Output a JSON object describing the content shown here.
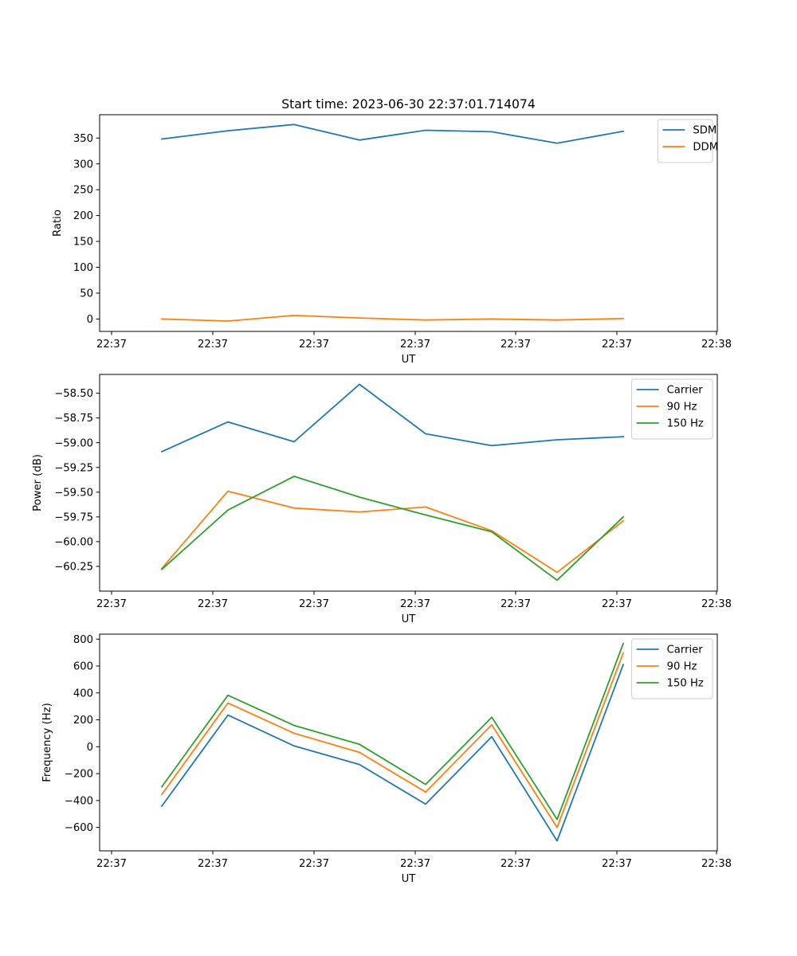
{
  "chart_data": [
    {
      "type": "line",
      "title": "Start time: 2023-06-30 22:37:01.714074",
      "xlabel": "UT",
      "ylabel": "Ratio",
      "x_tick_labels": [
        "22:37",
        "22:37",
        "22:37",
        "22:37",
        "22:37",
        "22:37",
        "22:38"
      ],
      "y_ticks": [
        0,
        50,
        100,
        150,
        200,
        250,
        300,
        350
      ],
      "y_tick_labels": [
        "0",
        "50",
        "100",
        "150",
        "200",
        "250",
        "300",
        "350"
      ],
      "ylim": [
        -24,
        395
      ],
      "legend": "upper right",
      "grid": false,
      "series": [
        {
          "name": "SDM",
          "color": "#1f77b4",
          "values": [
            348,
            364,
            376,
            346,
            365,
            362,
            340,
            363
          ]
        },
        {
          "name": "DDM",
          "color": "#ff7f0e",
          "values": [
            0,
            -4,
            7,
            2,
            -2,
            0,
            -2,
            1
          ]
        }
      ]
    },
    {
      "type": "line",
      "title": "",
      "xlabel": "UT",
      "ylabel": "Power (dB)",
      "x_tick_labels": [
        "22:37",
        "22:37",
        "22:37",
        "22:37",
        "22:37",
        "22:37",
        "22:38"
      ],
      "y_ticks": [
        -58.5,
        -58.75,
        -59.0,
        -59.25,
        -59.5,
        -59.75,
        -60.0,
        -60.25
      ],
      "y_tick_labels": [
        "−58.50",
        "−58.75",
        "−59.00",
        "−59.25",
        "−59.50",
        "−59.75",
        "−60.00",
        "−60.25"
      ],
      "ylim": [
        -60.5,
        -58.31
      ],
      "legend": "upper right",
      "grid": false,
      "series": [
        {
          "name": "Carrier",
          "color": "#1f77b4",
          "values": [
            -59.09,
            -58.79,
            -58.99,
            -58.41,
            -58.91,
            -59.03,
            -58.97,
            -58.94
          ]
        },
        {
          "name": "90 Hz",
          "color": "#ff7f0e",
          "values": [
            -60.27,
            -59.49,
            -59.66,
            -59.7,
            -59.65,
            -59.89,
            -60.31,
            -59.79
          ]
        },
        {
          "name": "150 Hz",
          "color": "#2ca02c",
          "values": [
            -60.28,
            -59.68,
            -59.34,
            -59.55,
            -59.73,
            -59.9,
            -60.39,
            -59.75
          ]
        }
      ]
    },
    {
      "type": "line",
      "title": "",
      "xlabel": "UT",
      "ylabel": "Frequency (Hz)",
      "x_tick_labels": [
        "22:37",
        "22:37",
        "22:37",
        "22:37",
        "22:37",
        "22:37",
        "22:38"
      ],
      "y_ticks": [
        800,
        600,
        400,
        200,
        0,
        -200,
        -400,
        -600
      ],
      "y_tick_labels": [
        "800",
        "600",
        "400",
        "200",
        "0",
        "−200",
        "−400",
        "−600"
      ],
      "ylim": [
        -774,
        837
      ],
      "legend": "upper right",
      "grid": false,
      "series": [
        {
          "name": "Carrier",
          "color": "#1f77b4",
          "values": [
            -442,
            235,
            6,
            -132,
            -427,
            74,
            -700,
            611
          ]
        },
        {
          "name": "90 Hz",
          "color": "#ff7f0e",
          "values": [
            -355,
            325,
            100,
            -42,
            -337,
            163,
            -600,
            697
          ]
        },
        {
          "name": "150 Hz",
          "color": "#2ca02c",
          "values": [
            -298,
            383,
            158,
            18,
            -280,
            220,
            -540,
            767
          ]
        }
      ]
    }
  ]
}
